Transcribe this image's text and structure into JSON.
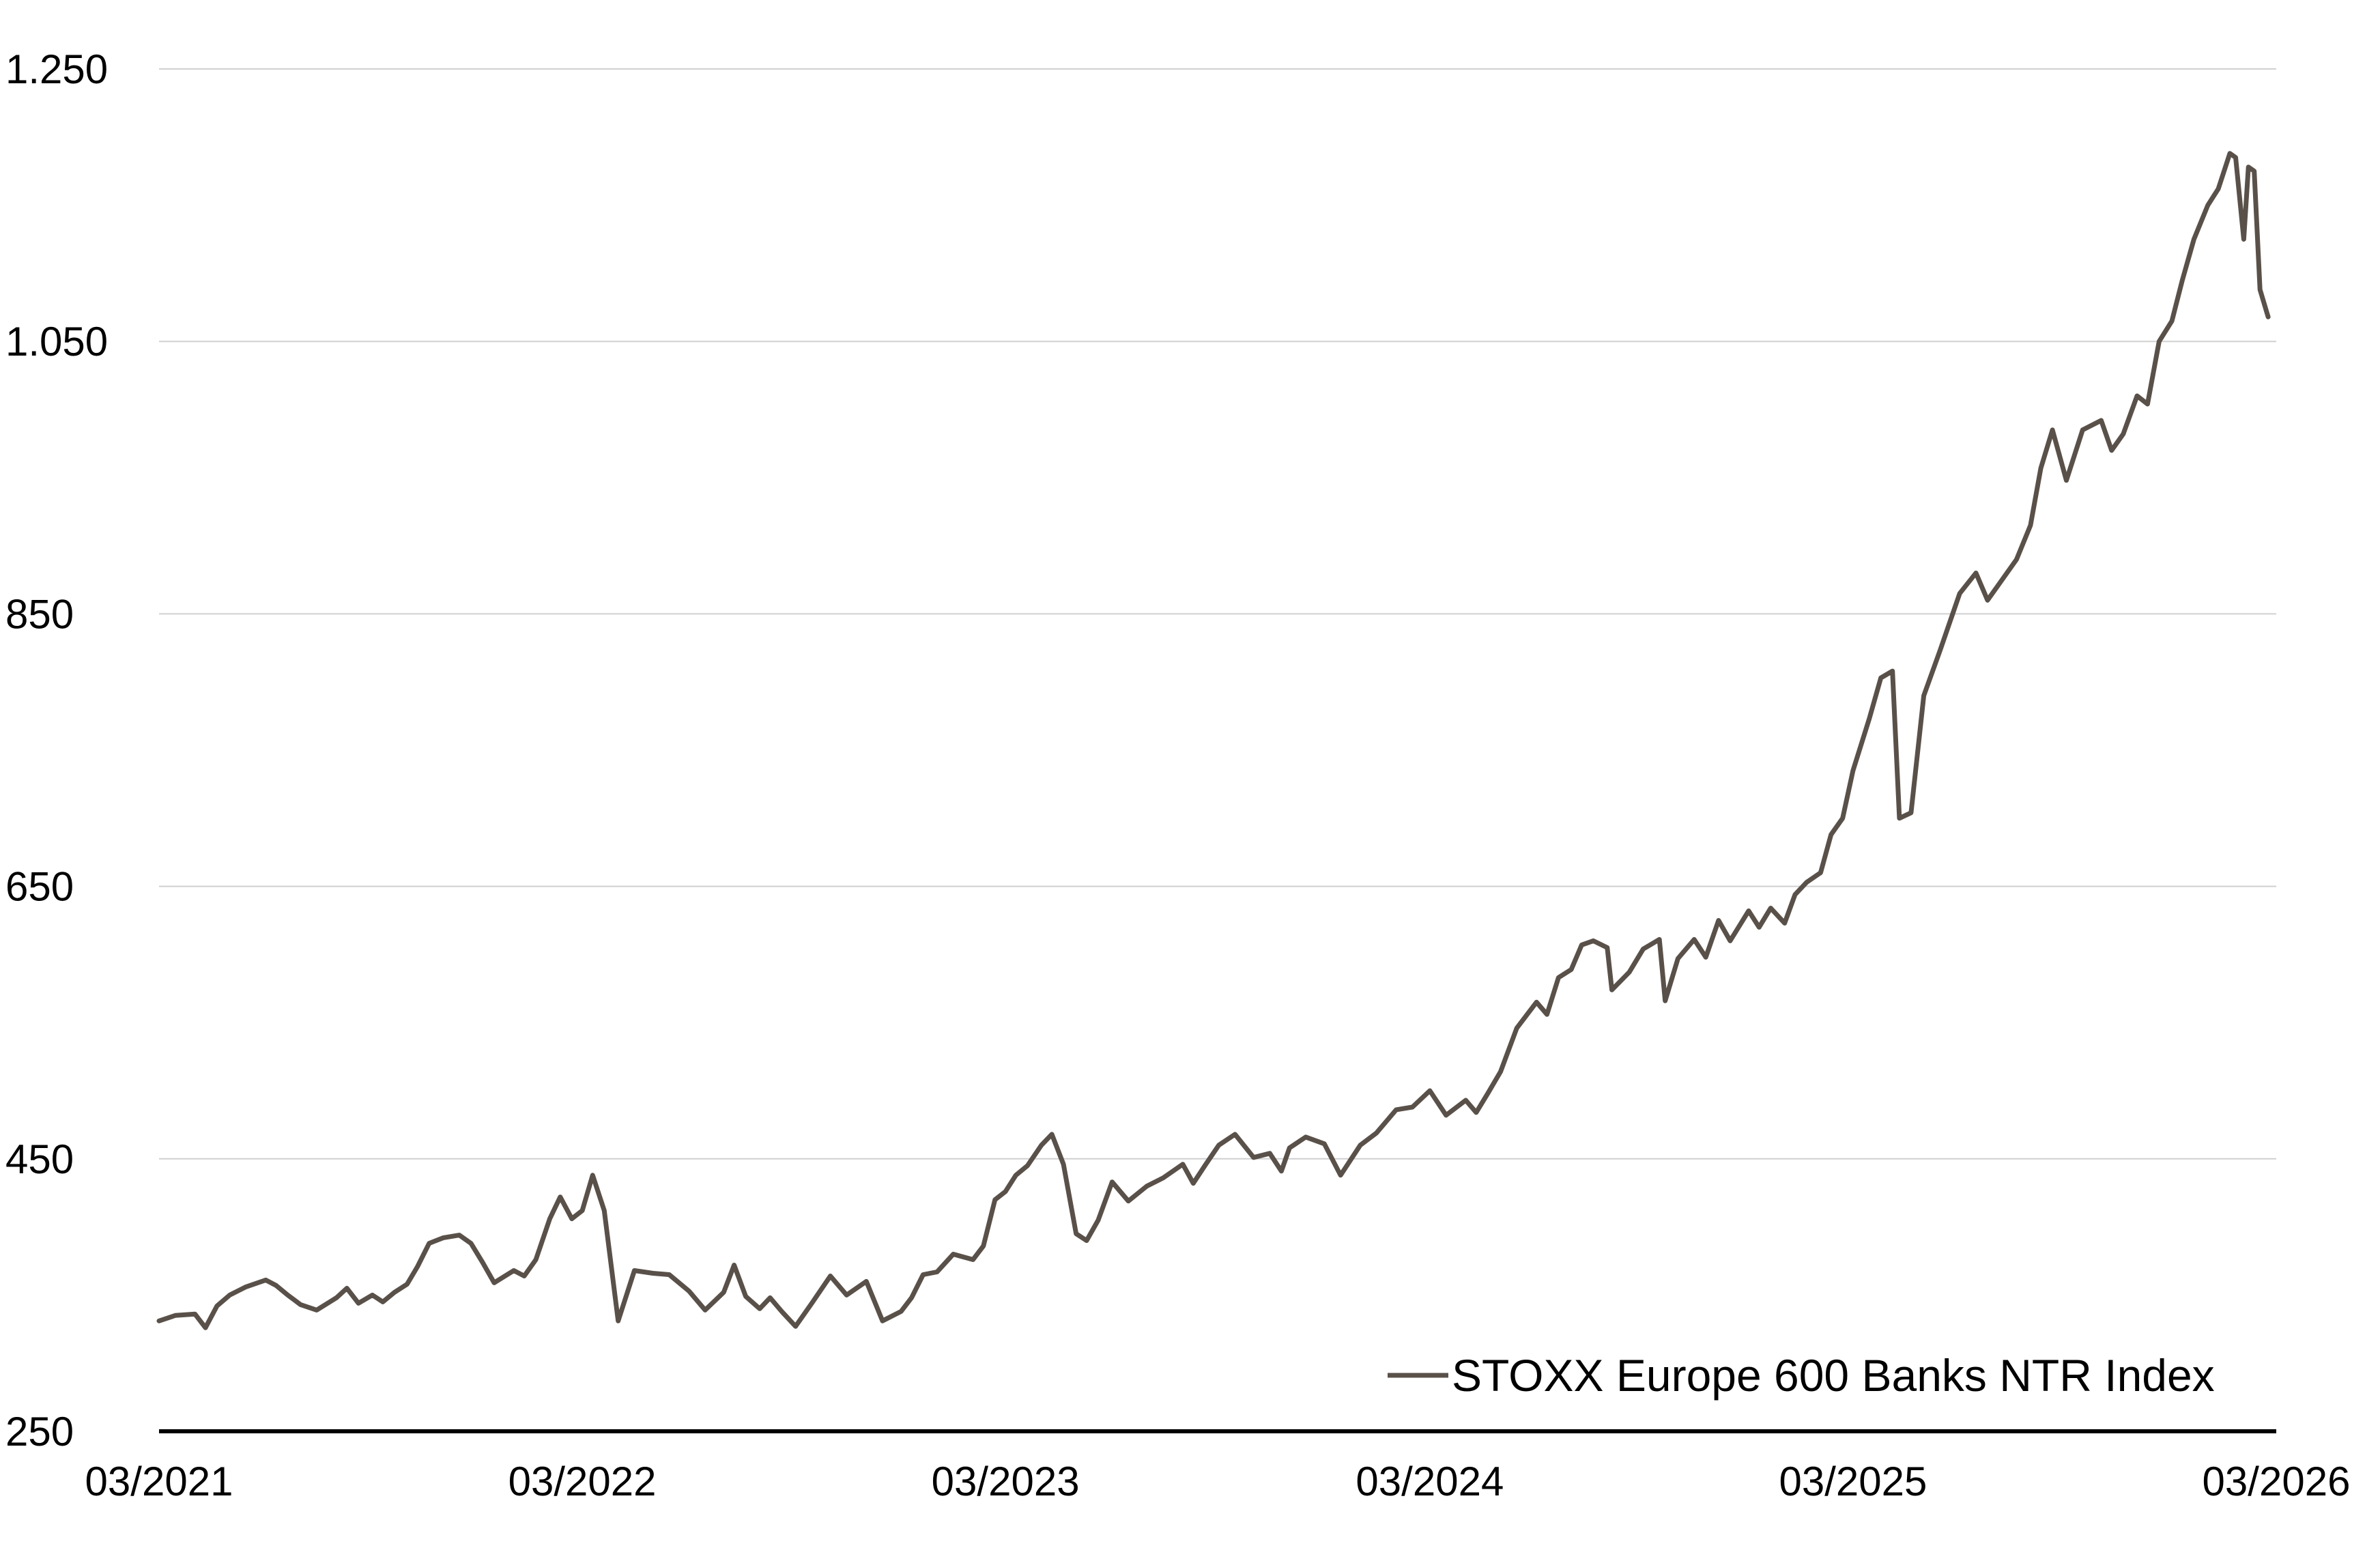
{
  "chart_data": {
    "type": "line",
    "title": "",
    "xlabel": "",
    "ylabel": "",
    "ylim": [
      250,
      1250
    ],
    "yticks": [
      250,
      450,
      650,
      850,
      1050,
      1250
    ],
    "ytick_labels": [
      "250",
      "450",
      "650",
      "850",
      "1.050",
      "1.250"
    ],
    "xlim": [
      "2021-03",
      "2026-03"
    ],
    "xticks": [
      "2021-03",
      "2022-03",
      "2023-03",
      "2024-03",
      "2025-03",
      "2026-03"
    ],
    "xtick_labels": [
      "03/2021",
      "03/2022",
      "03/2023",
      "03/2024",
      "03/2025",
      "03/2026"
    ],
    "grid": "horizontal",
    "legend_position": "bottom-right",
    "colors": {
      "line": "#595149",
      "grid": "#d0d0d0",
      "axis": "#000000"
    },
    "series": [
      {
        "name": "STOXX Europe 600 Banks NTR Index",
        "points": [
          [
            "2021-03-01",
            331
          ],
          [
            "2021-03-15",
            335
          ],
          [
            "2021-04-01",
            336
          ],
          [
            "2021-04-10",
            326
          ],
          [
            "2021-04-20",
            342
          ],
          [
            "2021-05-01",
            350
          ],
          [
            "2021-05-15",
            356
          ],
          [
            "2021-06-01",
            361
          ],
          [
            "2021-06-10",
            357
          ],
          [
            "2021-06-20",
            350
          ],
          [
            "2021-07-01",
            343
          ],
          [
            "2021-07-15",
            339
          ],
          [
            "2021-08-01",
            348
          ],
          [
            "2021-08-10",
            355
          ],
          [
            "2021-08-20",
            344
          ],
          [
            "2021-09-01",
            350
          ],
          [
            "2021-09-10",
            345
          ],
          [
            "2021-09-20",
            352
          ],
          [
            "2021-10-01",
            358
          ],
          [
            "2021-10-10",
            371
          ],
          [
            "2021-10-20",
            388
          ],
          [
            "2021-11-01",
            392
          ],
          [
            "2021-11-15",
            394
          ],
          [
            "2021-11-25",
            388
          ],
          [
            "2021-12-05",
            374
          ],
          [
            "2021-12-15",
            359
          ],
          [
            "2022-01-01",
            368
          ],
          [
            "2022-01-10",
            364
          ],
          [
            "2022-01-20",
            376
          ],
          [
            "2022-02-01",
            406
          ],
          [
            "2022-02-10",
            422
          ],
          [
            "2022-02-20",
            406
          ],
          [
            "2022-03-01",
            412
          ],
          [
            "2022-03-10",
            438
          ],
          [
            "2022-03-20",
            412
          ],
          [
            "2022-04-01",
            331
          ],
          [
            "2022-04-15",
            368
          ],
          [
            "2022-05-01",
            366
          ],
          [
            "2022-05-15",
            365
          ],
          [
            "2022-06-01",
            353
          ],
          [
            "2022-06-15",
            339
          ],
          [
            "2022-07-01",
            352
          ],
          [
            "2022-07-10",
            372
          ],
          [
            "2022-07-20",
            349
          ],
          [
            "2022-08-01",
            340
          ],
          [
            "2022-08-10",
            348
          ],
          [
            "2022-08-20",
            338
          ],
          [
            "2022-09-01",
            327
          ],
          [
            "2022-09-15",
            344
          ],
          [
            "2022-10-01",
            364
          ],
          [
            "2022-10-15",
            350
          ],
          [
            "2022-11-01",
            360
          ],
          [
            "2022-11-15",
            331
          ],
          [
            "2022-12-01",
            338
          ],
          [
            "2022-12-10",
            348
          ],
          [
            "2022-12-20",
            365
          ],
          [
            "2023-01-01",
            367
          ],
          [
            "2023-01-15",
            380
          ],
          [
            "2023-02-01",
            376
          ],
          [
            "2023-02-10",
            386
          ],
          [
            "2023-02-20",
            420
          ],
          [
            "2023-03-01",
            426
          ],
          [
            "2023-03-10",
            438
          ],
          [
            "2023-03-20",
            445
          ],
          [
            "2023-04-01",
            460
          ],
          [
            "2023-04-10",
            468
          ],
          [
            "2023-04-20",
            446
          ],
          [
            "2023-05-01",
            395
          ],
          [
            "2023-05-10",
            390
          ],
          [
            "2023-05-20",
            405
          ],
          [
            "2023-06-01",
            433
          ],
          [
            "2023-06-15",
            419
          ],
          [
            "2023-07-01",
            430
          ],
          [
            "2023-07-15",
            436
          ],
          [
            "2023-08-01",
            446
          ],
          [
            "2023-08-10",
            432
          ],
          [
            "2023-08-20",
            445
          ],
          [
            "2023-09-01",
            460
          ],
          [
            "2023-09-15",
            468
          ],
          [
            "2023-10-01",
            451
          ],
          [
            "2023-10-15",
            454
          ],
          [
            "2023-10-25",
            441
          ],
          [
            "2023-11-01",
            458
          ],
          [
            "2023-11-15",
            466
          ],
          [
            "2023-12-01",
            461
          ],
          [
            "2023-12-15",
            438
          ],
          [
            "2024-01-01",
            460
          ],
          [
            "2024-01-15",
            469
          ],
          [
            "2024-02-01",
            486
          ],
          [
            "2024-02-15",
            488
          ],
          [
            "2024-03-01",
            500
          ],
          [
            "2024-03-15",
            482
          ],
          [
            "2024-04-01",
            493
          ],
          [
            "2024-04-10",
            484
          ],
          [
            "2024-04-20",
            498
          ],
          [
            "2024-05-01",
            514
          ],
          [
            "2024-05-15",
            546
          ],
          [
            "2024-06-01",
            565
          ],
          [
            "2024-06-10",
            556
          ],
          [
            "2024-06-20",
            583
          ],
          [
            "2024-07-01",
            589
          ],
          [
            "2024-07-10",
            607
          ],
          [
            "2024-07-20",
            610
          ],
          [
            "2024-08-01",
            605
          ],
          [
            "2024-08-05",
            574
          ],
          [
            "2024-08-20",
            587
          ],
          [
            "2024-09-01",
            604
          ],
          [
            "2024-09-15",
            611
          ],
          [
            "2024-09-20",
            566
          ],
          [
            "2024-10-01",
            597
          ],
          [
            "2024-10-15",
            611
          ],
          [
            "2024-10-25",
            598
          ],
          [
            "2024-11-05",
            625
          ],
          [
            "2024-11-15",
            610
          ],
          [
            "2024-12-01",
            632
          ],
          [
            "2024-12-10",
            620
          ],
          [
            "2024-12-20",
            634
          ],
          [
            "2025-01-01",
            623
          ],
          [
            "2025-01-10",
            644
          ],
          [
            "2025-01-20",
            653
          ],
          [
            "2025-02-01",
            660
          ],
          [
            "2025-02-10",
            688
          ],
          [
            "2025-02-20",
            700
          ],
          [
            "2025-03-01",
            735
          ],
          [
            "2025-03-15",
            773
          ],
          [
            "2025-03-25",
            803
          ],
          [
            "2025-04-04",
            808
          ],
          [
            "2025-04-10",
            700
          ],
          [
            "2025-04-20",
            704
          ],
          [
            "2025-05-01",
            790
          ],
          [
            "2025-05-15",
            823
          ],
          [
            "2025-06-01",
            865
          ],
          [
            "2025-06-15",
            880
          ],
          [
            "2025-06-25",
            860
          ],
          [
            "2025-07-05",
            872
          ],
          [
            "2025-07-20",
            890
          ],
          [
            "2025-08-01",
            915
          ],
          [
            "2025-08-10",
            957
          ],
          [
            "2025-08-20",
            985
          ],
          [
            "2025-09-01",
            948
          ],
          [
            "2025-09-15",
            985
          ],
          [
            "2025-10-01",
            992
          ],
          [
            "2025-10-10",
            970
          ],
          [
            "2025-10-20",
            982
          ],
          [
            "2025-11-01",
            1010
          ],
          [
            "2025-11-10",
            1004
          ],
          [
            "2025-11-20",
            1050
          ],
          [
            "2025-12-01",
            1065
          ],
          [
            "2025-12-10",
            1095
          ],
          [
            "2025-12-20",
            1125
          ],
          [
            "2026-01-01",
            1150
          ],
          [
            "2026-01-10",
            1162
          ],
          [
            "2026-01-20",
            1188
          ],
          [
            "2026-01-25",
            1185
          ],
          [
            "2026-02-01",
            1125
          ],
          [
            "2026-02-05",
            1178
          ],
          [
            "2026-02-10",
            1175
          ],
          [
            "2026-02-15",
            1088
          ],
          [
            "2026-02-22",
            1068
          ]
        ]
      }
    ]
  }
}
